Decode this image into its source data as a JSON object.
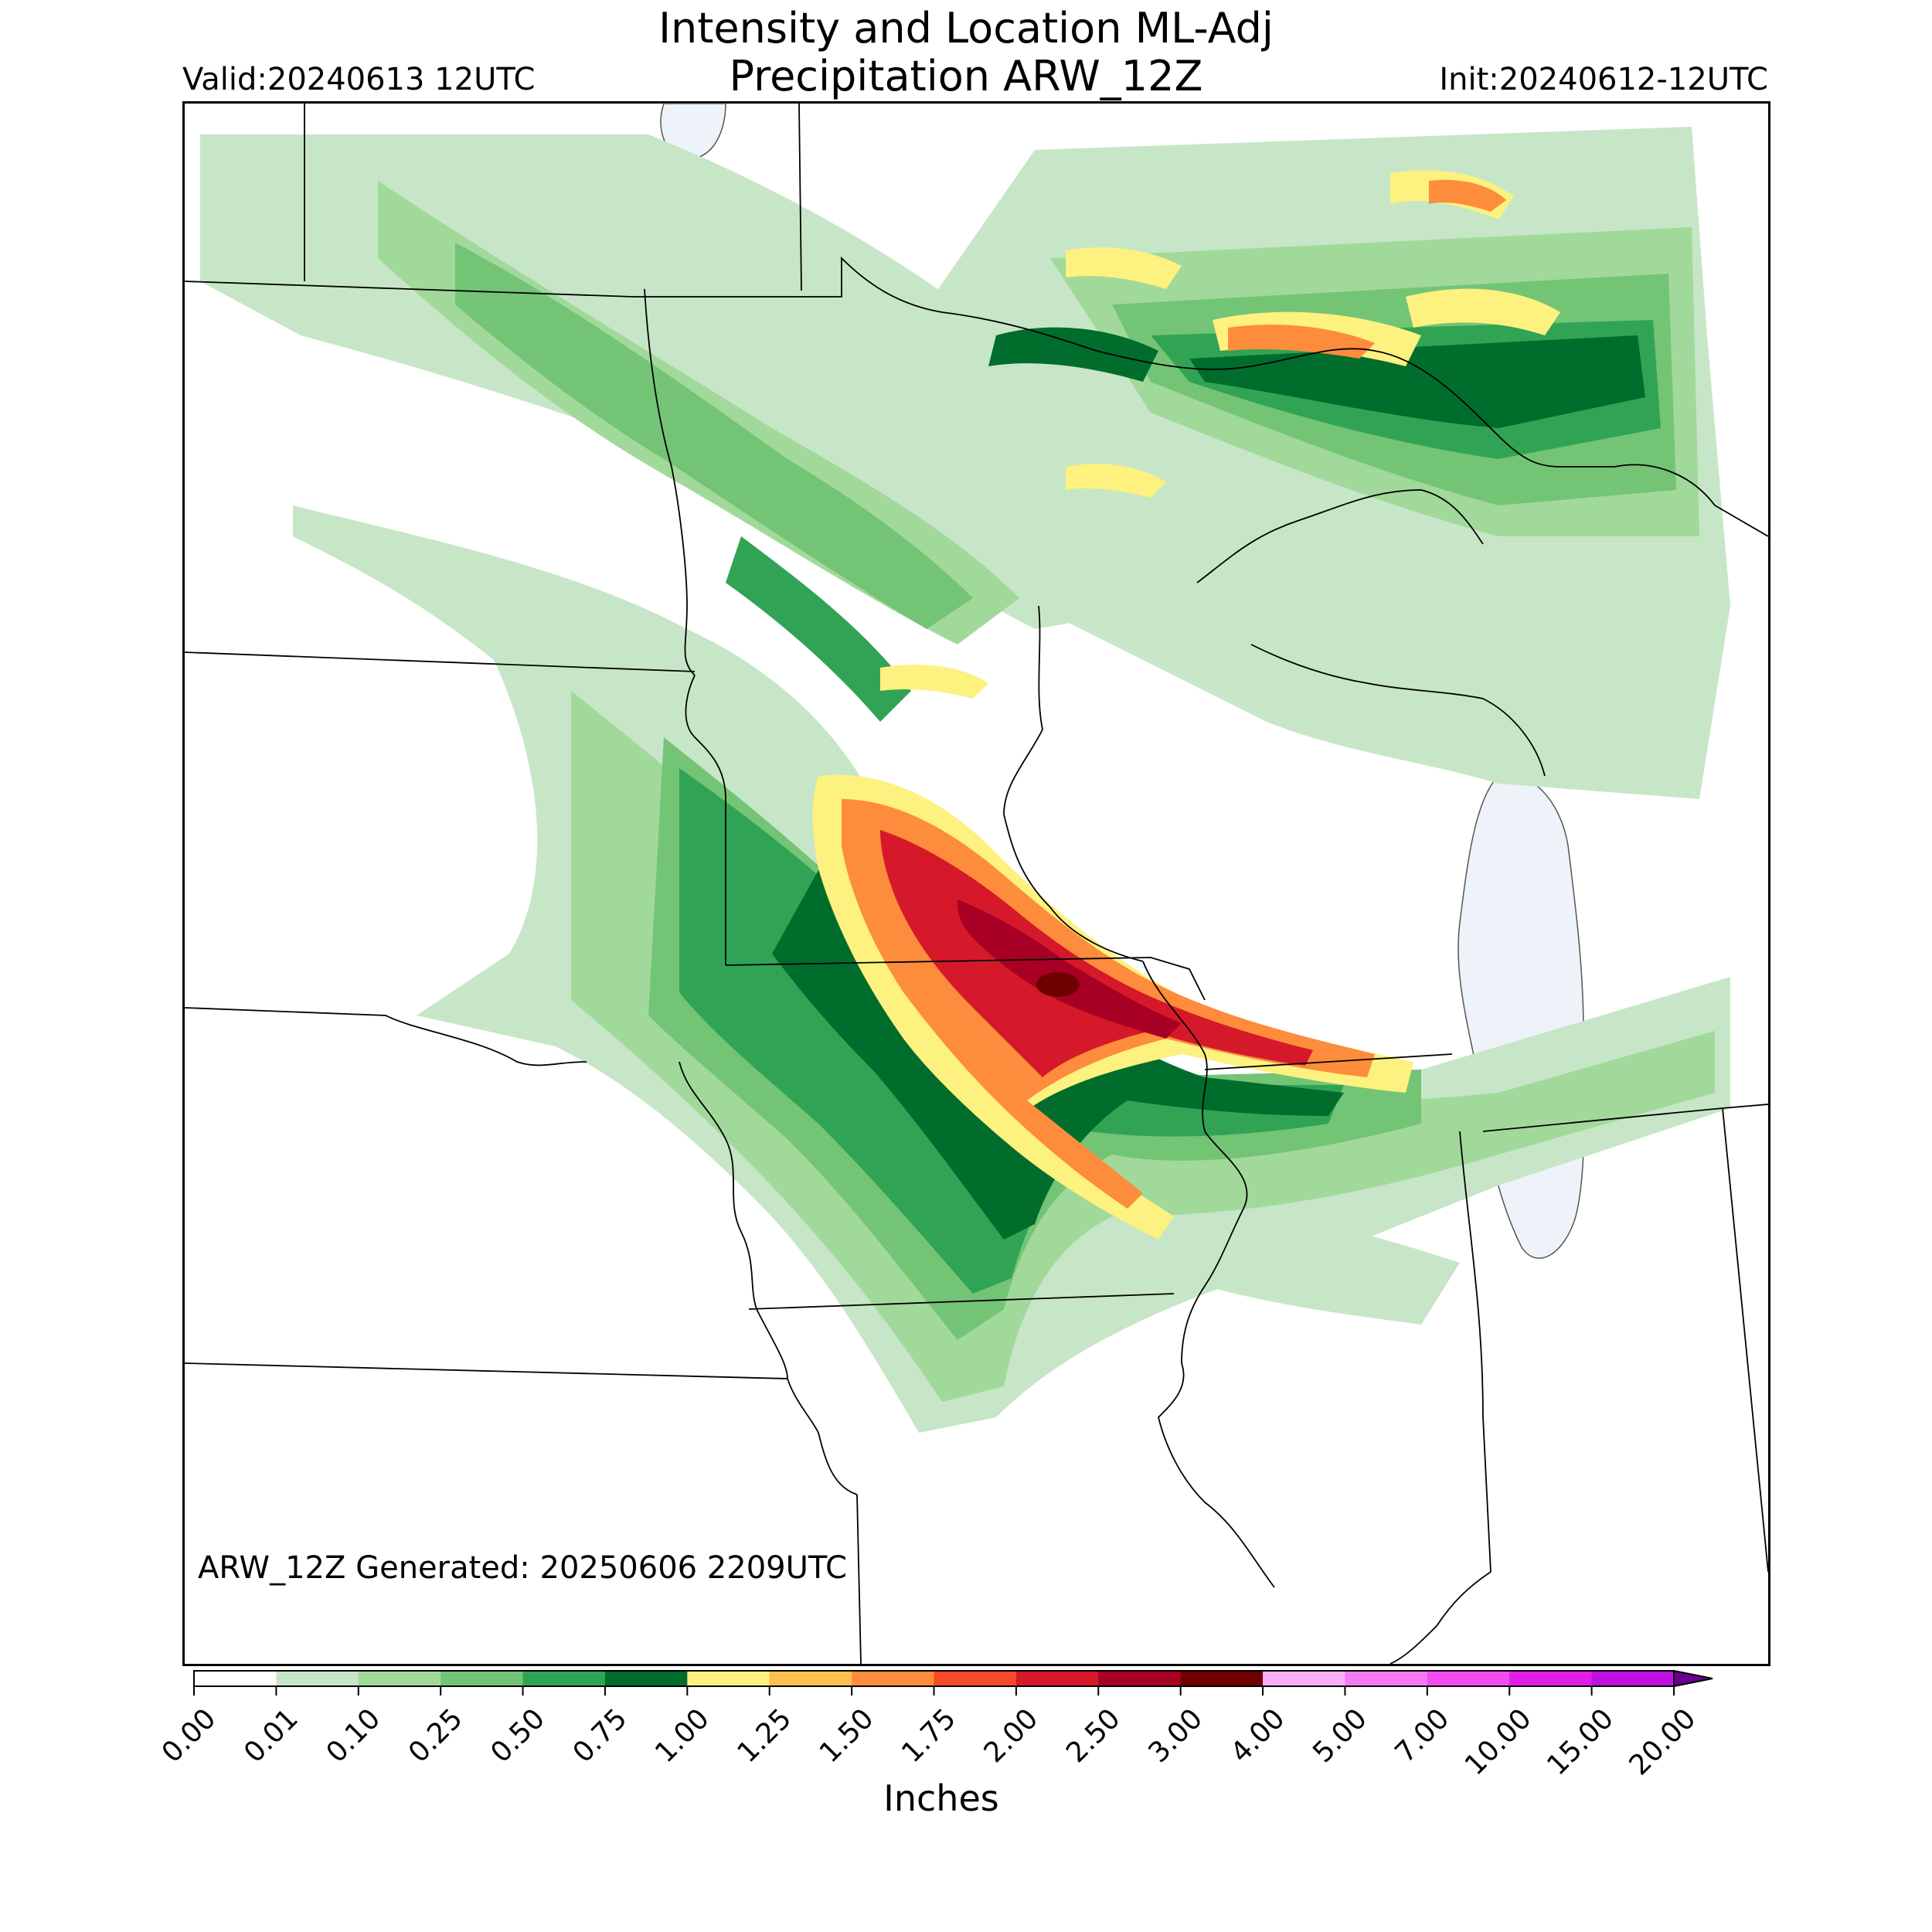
{
  "header": {
    "title_line1": "Intensity and Location ML-Adj",
    "title_line2": "Precipitation ARW_12Z",
    "valid": "Valid:20240613 12UTC",
    "init": "Init:20240612-12UTC"
  },
  "footer_note": "ARW_12Z Generated: 20250606 2209UTC",
  "colorbar": {
    "unit_label": "Inches",
    "ticks": [
      "0.00",
      "0.01",
      "0.10",
      "0.25",
      "0.50",
      "0.75",
      "1.00",
      "1.25",
      "1.50",
      "1.75",
      "2.00",
      "2.50",
      "3.00",
      "4.00",
      "5.00",
      "7.00",
      "10.00",
      "15.00",
      "20.00"
    ],
    "colors": [
      "#ffffff",
      "#c7e6c7",
      "#a1d99b",
      "#74c476",
      "#31a354",
      "#006d2c",
      "#fdf17f",
      "#fdc04c",
      "#fd8c3c",
      "#f64a2b",
      "#d6192a",
      "#a80025",
      "#700000",
      "#f8aef8",
      "#f47af4",
      "#f04cf0",
      "#e11ee7",
      "#c010e0",
      "#8d00c8"
    ],
    "extend_color": "#6a0090"
  },
  "legend_colors": {
    "water": "#eef3fa",
    "boundary": "#000000"
  }
}
